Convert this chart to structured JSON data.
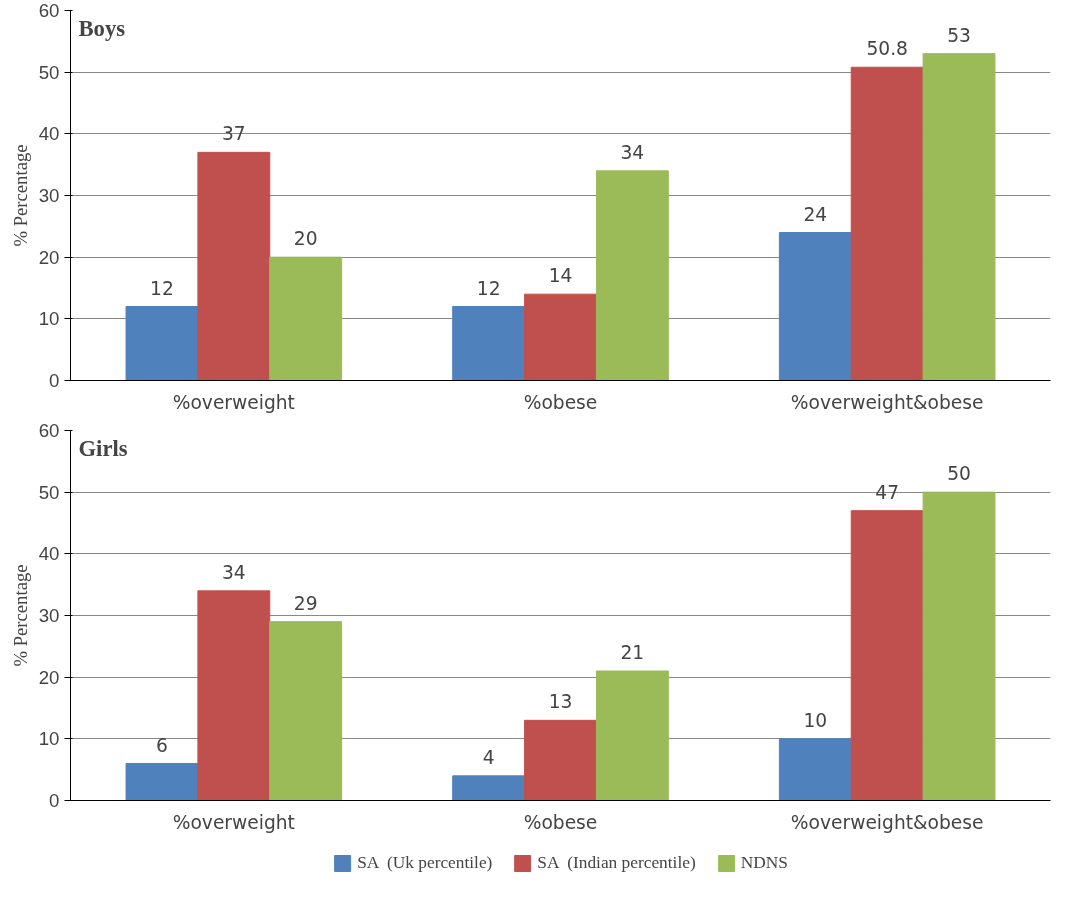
{
  "chart_data": [
    {
      "type": "bar",
      "title": "Boys",
      "ylabel": "% Percentage",
      "categories": [
        "%overweight",
        "%obese",
        "%overweight&obese"
      ],
      "series": [
        {
          "color": "#4f81bd",
          "values": [
            12,
            12,
            24
          ]
        },
        {
          "color": "#c0504d",
          "values": [
            37,
            14,
            50.8
          ]
        },
        {
          "color": "#9bbb59",
          "values": [
            20,
            34,
            53
          ]
        }
      ],
      "ylim": [
        0,
        60
      ],
      "yticks": [
        0,
        10,
        20,
        30,
        40,
        50,
        60
      ],
      "grid": "y",
      "data_labels": true
    },
    {
      "type": "bar",
      "title": "Girls",
      "ylabel": "% Percentage",
      "categories": [
        "%overweight",
        "%obese",
        "%overweight&obese"
      ],
      "series": [
        {
          "name": "SA  (Uk percentile)",
          "color": "#4f81bd",
          "values": [
            6,
            4,
            10
          ]
        },
        {
          "name": "SA  (Indian percentile)",
          "color": "#c0504d",
          "values": [
            34,
            13,
            47
          ]
        },
        {
          "name": "NDNS",
          "color": "#9bbb59",
          "values": [
            29,
            21,
            50
          ]
        }
      ],
      "ylim": [
        0,
        60
      ],
      "yticks": [
        0,
        10,
        20,
        30,
        40,
        50,
        60
      ],
      "grid": "y",
      "data_labels": true,
      "legend": "bottom"
    }
  ]
}
